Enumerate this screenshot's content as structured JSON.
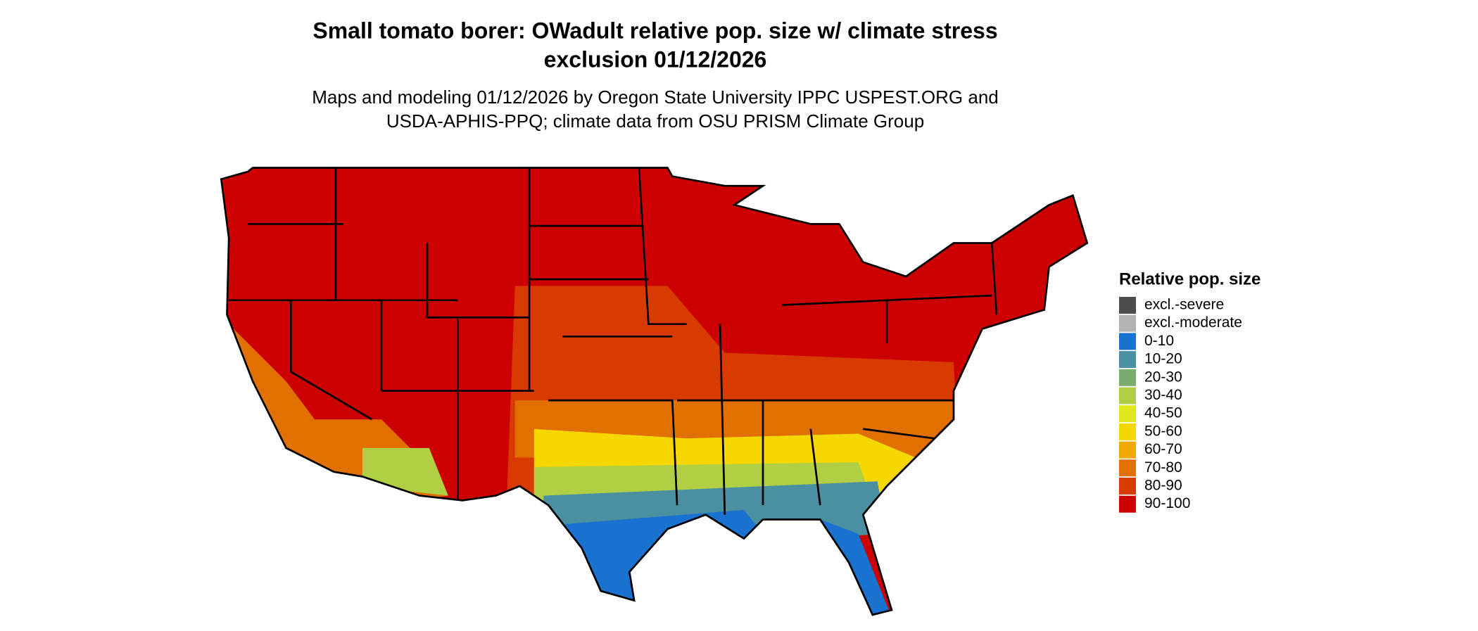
{
  "header": {
    "title_lines": [
      "Small tomato borer: OWadult relative pop. size w/ climate stress",
      "exclusion 01/12/2026"
    ],
    "subtitle_lines": [
      "Maps and modeling 01/12/2026 by Oregon State University IPPC USPEST.ORG and",
      "USDA-APHIS-PPQ; climate data from OSU PRISM Climate Group"
    ]
  },
  "legend": {
    "title": "Relative pop. size",
    "items": [
      {
        "label": "excl.-severe",
        "color": "#4d4d4d"
      },
      {
        "label": "excl.-moderate",
        "color": "#b3b3b3"
      },
      {
        "label": "0-10",
        "color": "#1a72d0"
      },
      {
        "label": "10-20",
        "color": "#4a90a0"
      },
      {
        "label": "20-30",
        "color": "#7aac70"
      },
      {
        "label": "30-40",
        "color": "#b0cf45"
      },
      {
        "label": "40-50",
        "color": "#dfe81a"
      },
      {
        "label": "50-60",
        "color": "#f6d800"
      },
      {
        "label": "60-70",
        "color": "#eeaa00"
      },
      {
        "label": "70-80",
        "color": "#e27000"
      },
      {
        "label": "80-90",
        "color": "#d93a00"
      },
      {
        "label": "90-100",
        "color": "#cc0000"
      }
    ]
  }
}
